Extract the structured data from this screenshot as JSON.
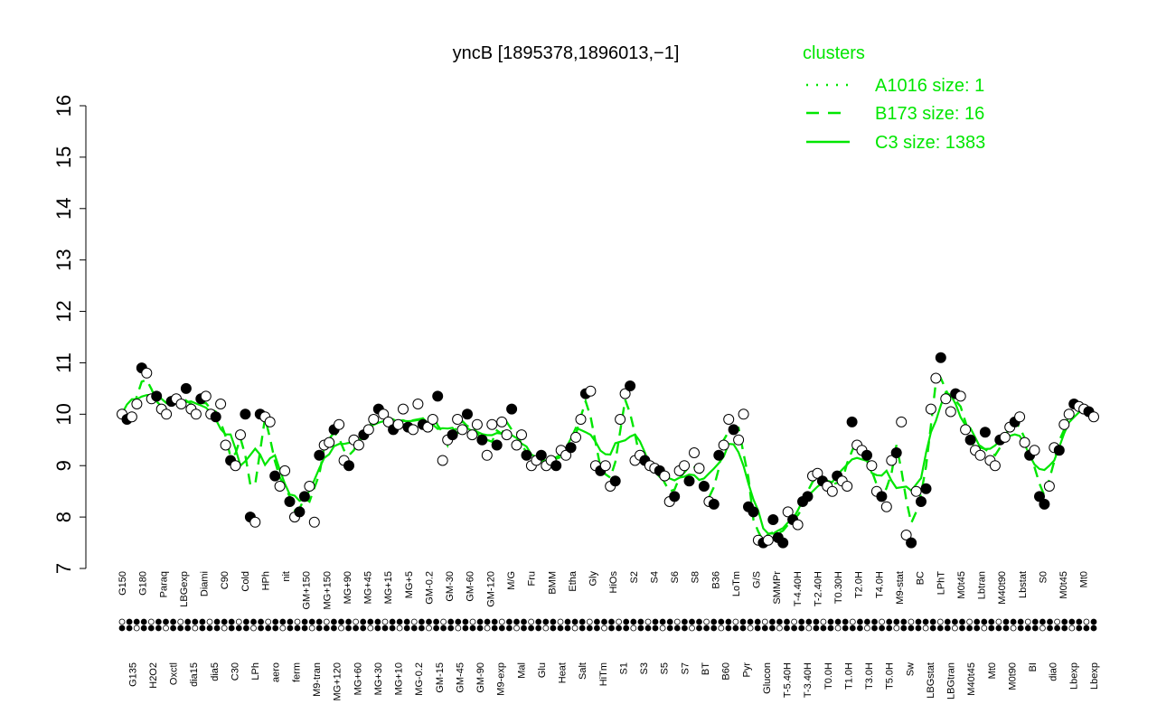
{
  "chart_data": {
    "type": "line",
    "title": "yncB [1895378,1896013,−1]",
    "xlabel": "",
    "ylabel": "",
    "ylim": [
      7,
      16
    ],
    "yticks": [
      7,
      8,
      9,
      10,
      11,
      12,
      13,
      14,
      15,
      16
    ],
    "grid": false,
    "legend": {
      "title": "clusters",
      "placement": "top-right",
      "color": "#00e600",
      "entries": [
        {
          "label": "A1016 size: 1",
          "style": "dotted"
        },
        {
          "label": "B173 size: 16",
          "style": "dashed"
        },
        {
          "label": "C3 size: 1383",
          "style": "solid"
        }
      ]
    },
    "x_tick_labels": [
      "G150",
      "G135",
      "G180",
      "H2O2",
      "Paraq",
      "Oxctl",
      "LBGexp",
      "dia15",
      "Diami",
      "dia5",
      "C90",
      "C30",
      "Cold",
      "LPh",
      "HPh",
      "aero",
      "nit",
      "ferm",
      "GM+150",
      "M9-tran",
      "MG+150",
      "MG+120",
      "MG+90",
      "MG+60",
      "MG+45",
      "MG+30",
      "MG+15",
      "MG+10",
      "MG+5",
      "MG-0.2",
      "GM-0.2",
      "GM-15",
      "GM-30",
      "GM-45",
      "GM-60",
      "GM-90",
      "GM-120",
      "M9-exp",
      "M/G",
      "Mal",
      "Fru",
      "Glu",
      "BMM",
      "Heat",
      "Etha",
      "Salt",
      "Gly",
      "HiTm",
      "HiOs",
      "S1",
      "S2",
      "S3",
      "S4",
      "S5",
      "S6",
      "S7",
      "S8",
      "BT",
      "B36",
      "B60",
      "LoTm",
      "Pyr",
      "G/S",
      "Glucon",
      "SMMPr",
      "T-5.40H",
      "T-4.40H",
      "T-3.40H",
      "T-2.40H",
      "T0.0H",
      "T0.30H",
      "T1.0H",
      "T2.0H",
      "T3.0H",
      "T4.0H",
      "T5.0H",
      "M9-stat",
      "Sw",
      "BC",
      "LBGstat",
      "LPhT",
      "LBGtran",
      "M0t45",
      "M40t45",
      "Lbtran",
      "Mt0",
      "M40t90",
      "M0t90",
      "Lbstat",
      "BI",
      "S0",
      "dia0",
      "M0t45",
      "Lbexp",
      "Mt0",
      "Lbexp"
    ],
    "sample_points": [
      {
        "x": 1,
        "y": 10.0
      },
      {
        "x": 2,
        "y": 9.9
      },
      {
        "x": 3,
        "y": 9.95
      },
      {
        "x": 4,
        "y": 10.2
      },
      {
        "x": 5,
        "y": 10.9
      },
      {
        "x": 6,
        "y": 10.8
      },
      {
        "x": 7,
        "y": 10.3
      },
      {
        "x": 8,
        "y": 10.35
      },
      {
        "x": 9,
        "y": 10.1
      },
      {
        "x": 10,
        "y": 10.0
      },
      {
        "x": 11,
        "y": 10.25
      },
      {
        "x": 12,
        "y": 10.3
      },
      {
        "x": 13,
        "y": 10.2
      },
      {
        "x": 14,
        "y": 10.5
      },
      {
        "x": 15,
        "y": 10.1
      },
      {
        "x": 16,
        "y": 10.0
      },
      {
        "x": 17,
        "y": 10.3
      },
      {
        "x": 18,
        "y": 10.35
      },
      {
        "x": 19,
        "y": 10.0
      },
      {
        "x": 20,
        "y": 9.95
      },
      {
        "x": 21,
        "y": 10.2
      },
      {
        "x": 22,
        "y": 9.4
      },
      {
        "x": 23,
        "y": 9.1
      },
      {
        "x": 24,
        "y": 9.0
      },
      {
        "x": 25,
        "y": 9.6
      },
      {
        "x": 26,
        "y": 10.0
      },
      {
        "x": 27,
        "y": 8.0
      },
      {
        "x": 28,
        "y": 7.9
      },
      {
        "x": 29,
        "y": 10.0
      },
      {
        "x": 30,
        "y": 9.95
      },
      {
        "x": 31,
        "y": 9.85
      },
      {
        "x": 32,
        "y": 8.8
      },
      {
        "x": 33,
        "y": 8.6
      },
      {
        "x": 34,
        "y": 8.9
      },
      {
        "x": 35,
        "y": 8.3
      },
      {
        "x": 36,
        "y": 8.0
      },
      {
        "x": 37,
        "y": 8.1
      },
      {
        "x": 38,
        "y": 8.4
      },
      {
        "x": 39,
        "y": 8.6
      },
      {
        "x": 40,
        "y": 7.9
      },
      {
        "x": 41,
        "y": 9.2
      },
      {
        "x": 42,
        "y": 9.4
      },
      {
        "x": 43,
        "y": 9.45
      },
      {
        "x": 44,
        "y": 9.7
      },
      {
        "x": 45,
        "y": 9.8
      },
      {
        "x": 46,
        "y": 9.1
      },
      {
        "x": 47,
        "y": 9.0
      },
      {
        "x": 48,
        "y": 9.5
      },
      {
        "x": 49,
        "y": 9.4
      },
      {
        "x": 50,
        "y": 9.6
      },
      {
        "x": 51,
        "y": 9.7
      },
      {
        "x": 52,
        "y": 9.9
      },
      {
        "x": 53,
        "y": 10.1
      },
      {
        "x": 54,
        "y": 10.0
      },
      {
        "x": 55,
        "y": 9.85
      },
      {
        "x": 56,
        "y": 9.7
      },
      {
        "x": 57,
        "y": 9.8
      },
      {
        "x": 58,
        "y": 10.1
      },
      {
        "x": 59,
        "y": 9.75
      },
      {
        "x": 60,
        "y": 9.7
      },
      {
        "x": 61,
        "y": 10.2
      },
      {
        "x": 62,
        "y": 9.8
      },
      {
        "x": 63,
        "y": 9.75
      },
      {
        "x": 64,
        "y": 9.9
      },
      {
        "x": 65,
        "y": 10.35
      },
      {
        "x": 66,
        "y": 9.1
      },
      {
        "x": 67,
        "y": 9.5
      },
      {
        "x": 68,
        "y": 9.6
      },
      {
        "x": 69,
        "y": 9.9
      },
      {
        "x": 70,
        "y": 9.7
      },
      {
        "x": 71,
        "y": 10.0
      },
      {
        "x": 72,
        "y": 9.6
      },
      {
        "x": 73,
        "y": 9.8
      },
      {
        "x": 74,
        "y": 9.5
      },
      {
        "x": 75,
        "y": 9.2
      },
      {
        "x": 76,
        "y": 9.8
      },
      {
        "x": 77,
        "y": 9.4
      },
      {
        "x": 78,
        "y": 9.85
      },
      {
        "x": 79,
        "y": 9.6
      },
      {
        "x": 80,
        "y": 10.1
      },
      {
        "x": 81,
        "y": 9.4
      },
      {
        "x": 82,
        "y": 9.6
      },
      {
        "x": 83,
        "y": 9.2
      },
      {
        "x": 84,
        "y": 9.0
      },
      {
        "x": 85,
        "y": 9.1
      },
      {
        "x": 86,
        "y": 9.2
      },
      {
        "x": 87,
        "y": 9.0
      },
      {
        "x": 88,
        "y": 9.1
      },
      {
        "x": 89,
        "y": 9.0
      },
      {
        "x": 90,
        "y": 9.3
      },
      {
        "x": 91,
        "y": 9.2
      },
      {
        "x": 92,
        "y": 9.35
      },
      {
        "x": 93,
        "y": 9.55
      },
      {
        "x": 94,
        "y": 9.9
      },
      {
        "x": 95,
        "y": 10.4
      },
      {
        "x": 96,
        "y": 10.45
      },
      {
        "x": 97,
        "y": 9.0
      },
      {
        "x": 98,
        "y": 8.9
      },
      {
        "x": 99,
        "y": 9.0
      },
      {
        "x": 100,
        "y": 8.6
      },
      {
        "x": 101,
        "y": 8.7
      },
      {
        "x": 102,
        "y": 9.9
      },
      {
        "x": 103,
        "y": 10.4
      },
      {
        "x": 104,
        "y": 10.55
      },
      {
        "x": 105,
        "y": 9.1
      },
      {
        "x": 106,
        "y": 9.2
      },
      {
        "x": 107,
        "y": 9.1
      },
      {
        "x": 108,
        "y": 9.0
      },
      {
        "x": 109,
        "y": 8.95
      },
      {
        "x": 110,
        "y": 8.9
      },
      {
        "x": 111,
        "y": 8.8
      },
      {
        "x": 112,
        "y": 8.3
      },
      {
        "x": 113,
        "y": 8.4
      },
      {
        "x": 114,
        "y": 8.9
      },
      {
        "x": 115,
        "y": 9.0
      },
      {
        "x": 116,
        "y": 8.7
      },
      {
        "x": 117,
        "y": 9.25
      },
      {
        "x": 118,
        "y": 8.95
      },
      {
        "x": 119,
        "y": 8.6
      },
      {
        "x": 120,
        "y": 8.3
      },
      {
        "x": 121,
        "y": 8.25
      },
      {
        "x": 122,
        "y": 9.2
      },
      {
        "x": 123,
        "y": 9.4
      },
      {
        "x": 124,
        "y": 9.9
      },
      {
        "x": 125,
        "y": 9.7
      },
      {
        "x": 126,
        "y": 9.5
      },
      {
        "x": 127,
        "y": 10.0
      },
      {
        "x": 128,
        "y": 8.2
      },
      {
        "x": 129,
        "y": 8.1
      },
      {
        "x": 130,
        "y": 7.55
      },
      {
        "x": 131,
        "y": 7.5
      },
      {
        "x": 132,
        "y": 7.55
      },
      {
        "x": 133,
        "y": 7.95
      },
      {
        "x": 134,
        "y": 7.6
      },
      {
        "x": 135,
        "y": 7.5
      },
      {
        "x": 136,
        "y": 8.1
      },
      {
        "x": 137,
        "y": 7.95
      },
      {
        "x": 138,
        "y": 7.85
      },
      {
        "x": 139,
        "y": 8.3
      },
      {
        "x": 140,
        "y": 8.4
      },
      {
        "x": 141,
        "y": 8.8
      },
      {
        "x": 142,
        "y": 8.85
      },
      {
        "x": 143,
        "y": 8.7
      },
      {
        "x": 144,
        "y": 8.6
      },
      {
        "x": 145,
        "y": 8.5
      },
      {
        "x": 146,
        "y": 8.8
      },
      {
        "x": 147,
        "y": 8.7
      },
      {
        "x": 148,
        "y": 8.6
      },
      {
        "x": 149,
        "y": 9.85
      },
      {
        "x": 150,
        "y": 9.4
      },
      {
        "x": 151,
        "y": 9.3
      },
      {
        "x": 152,
        "y": 9.2
      },
      {
        "x": 153,
        "y": 9.0
      },
      {
        "x": 154,
        "y": 8.5
      },
      {
        "x": 155,
        "y": 8.4
      },
      {
        "x": 156,
        "y": 8.2
      },
      {
        "x": 157,
        "y": 9.1
      },
      {
        "x": 158,
        "y": 9.25
      },
      {
        "x": 159,
        "y": 9.85
      },
      {
        "x": 160,
        "y": 7.65
      },
      {
        "x": 161,
        "y": 7.5
      },
      {
        "x": 162,
        "y": 8.5
      },
      {
        "x": 163,
        "y": 8.3
      },
      {
        "x": 164,
        "y": 8.55
      },
      {
        "x": 165,
        "y": 10.1
      },
      {
        "x": 166,
        "y": 10.7
      },
      {
        "x": 167,
        "y": 11.1
      },
      {
        "x": 168,
        "y": 10.3
      },
      {
        "x": 169,
        "y": 10.05
      },
      {
        "x": 170,
        "y": 10.4
      },
      {
        "x": 171,
        "y": 10.35
      },
      {
        "x": 172,
        "y": 9.7
      },
      {
        "x": 173,
        "y": 9.5
      },
      {
        "x": 174,
        "y": 9.3
      },
      {
        "x": 175,
        "y": 9.2
      },
      {
        "x": 176,
        "y": 9.65
      },
      {
        "x": 177,
        "y": 9.1
      },
      {
        "x": 178,
        "y": 9.0
      },
      {
        "x": 179,
        "y": 9.5
      },
      {
        "x": 180,
        "y": 9.55
      },
      {
        "x": 181,
        "y": 9.75
      },
      {
        "x": 182,
        "y": 9.85
      },
      {
        "x": 183,
        "y": 9.95
      },
      {
        "x": 184,
        "y": 9.45
      },
      {
        "x": 185,
        "y": 9.2
      },
      {
        "x": 186,
        "y": 9.3
      },
      {
        "x": 187,
        "y": 8.4
      },
      {
        "x": 188,
        "y": 8.25
      },
      {
        "x": 189,
        "y": 8.6
      },
      {
        "x": 190,
        "y": 9.35
      },
      {
        "x": 191,
        "y": 9.3
      },
      {
        "x": 192,
        "y": 9.8
      },
      {
        "x": 193,
        "y": 10.0
      },
      {
        "x": 194,
        "y": 10.2
      },
      {
        "x": 195,
        "y": 10.15
      },
      {
        "x": 196,
        "y": 10.1
      },
      {
        "x": 197,
        "y": 10.05
      },
      {
        "x": 198,
        "y": 9.95
      }
    ]
  },
  "colors": {
    "points_open": "#ffffff",
    "points_filled": "#000000",
    "series_line": "#00e600",
    "axis": "#000000"
  }
}
